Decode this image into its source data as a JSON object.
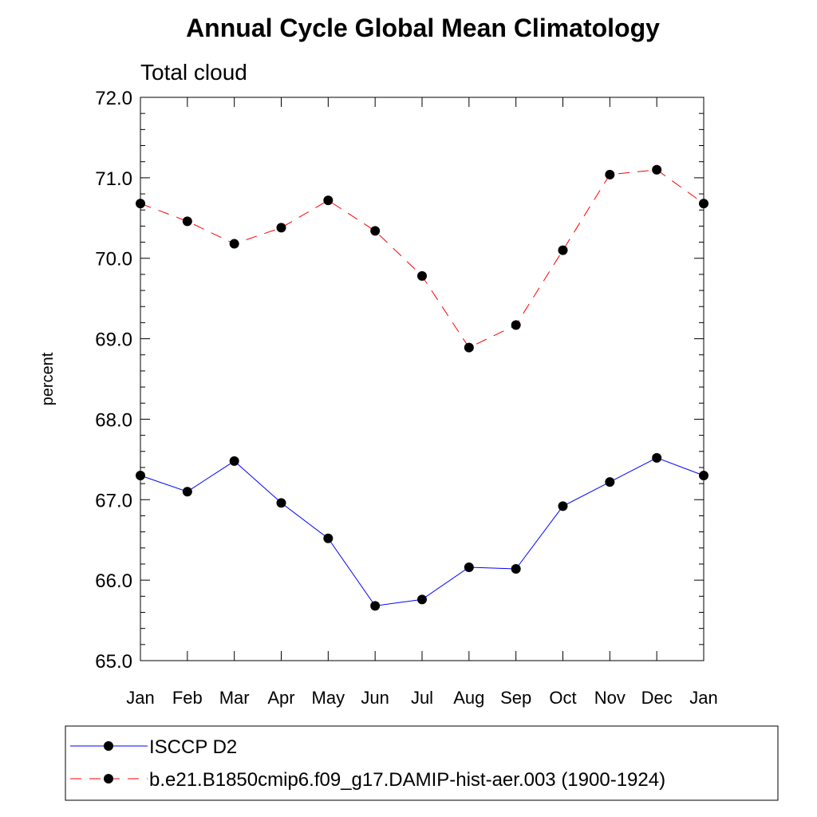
{
  "chart_data": {
    "type": "line",
    "title": "Annual Cycle Global Mean Climatology",
    "subtitle": "Total cloud",
    "ylabel": "percent",
    "xlabel": "",
    "ylim": [
      65.0,
      72.0
    ],
    "y_ticks": [
      "65.0",
      "66.0",
      "67.0",
      "68.0",
      "69.0",
      "70.0",
      "71.0",
      "72.0"
    ],
    "categories": [
      "Jan",
      "Feb",
      "Mar",
      "Apr",
      "May",
      "Jun",
      "Jul",
      "Aug",
      "Sep",
      "Oct",
      "Nov",
      "Dec",
      "Jan"
    ],
    "series": [
      {
        "name": "ISCCP D2",
        "color": "#0000ff",
        "dash": "solid",
        "marker": "filled-circle",
        "values": [
          67.3,
          67.1,
          67.48,
          66.96,
          66.52,
          65.68,
          65.76,
          66.16,
          66.14,
          66.92,
          67.22,
          67.52,
          67.3
        ]
      },
      {
        "name": "b.e21.B1850cmip6.f09_g17.DAMIP-hist-aer.003 (1900-1924)",
        "color": "#ff0000",
        "dash": "dashed",
        "marker": "filled-circle",
        "values": [
          70.68,
          70.46,
          70.18,
          70.38,
          70.72,
          70.34,
          69.78,
          68.89,
          69.17,
          70.1,
          71.04,
          71.1,
          70.68
        ]
      }
    ],
    "grid": false,
    "legend_position": "bottom"
  }
}
